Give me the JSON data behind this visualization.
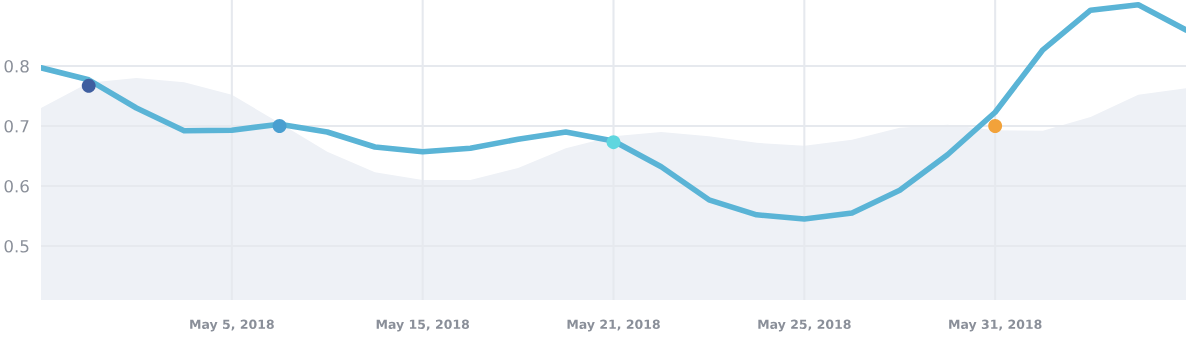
{
  "chart_data": {
    "type": "line",
    "categories": [
      null,
      null,
      null,
      null,
      "May 5, 2018",
      null,
      null,
      null,
      "May 15, 2018",
      null,
      null,
      null,
      "May 21, 2018",
      null,
      null,
      null,
      "May 25, 2018",
      null,
      null,
      null,
      "May 31, 2018",
      null,
      null,
      null,
      null
    ],
    "ylim": [
      0.41,
      0.91
    ],
    "yticks": [
      0.5,
      0.6,
      0.7,
      0.8
    ],
    "grid": true,
    "series": [
      {
        "type": "area",
        "color": "#eef1f6",
        "values": [
          0.73,
          0.772,
          0.78,
          0.773,
          0.752,
          0.705,
          0.657,
          0.623,
          0.61,
          0.61,
          0.63,
          0.663,
          0.683,
          0.69,
          0.683,
          0.672,
          0.667,
          0.677,
          0.697,
          0.702,
          0.693,
          0.692,
          0.715,
          0.752,
          0.763
        ]
      },
      {
        "color": "#5ab4d6",
        "values": [
          0.797,
          0.777,
          0.73,
          0.692,
          0.693,
          0.703,
          0.69,
          0.665,
          0.657,
          0.663,
          0.678,
          0.69,
          0.675,
          0.632,
          0.577,
          0.552,
          0.545,
          0.555,
          0.593,
          0.652,
          0.723,
          0.827,
          0.893,
          0.902,
          0.86
        ]
      },
      {
        "type": "scatter",
        "marker": "circle",
        "colors": [
          null,
          "#3f5fa0",
          null,
          null,
          null,
          "#4a9fd0",
          null,
          null,
          null,
          null,
          null,
          null,
          "#5fd6df",
          null,
          null,
          null,
          null,
          null,
          null,
          null,
          "#f2a23a",
          null,
          null,
          null,
          null
        ],
        "values": [
          null,
          0.767,
          null,
          null,
          null,
          0.7,
          null,
          null,
          null,
          null,
          null,
          null,
          0.673,
          null,
          null,
          null,
          null,
          null,
          null,
          null,
          0.7,
          null,
          null,
          null,
          null
        ]
      }
    ]
  }
}
